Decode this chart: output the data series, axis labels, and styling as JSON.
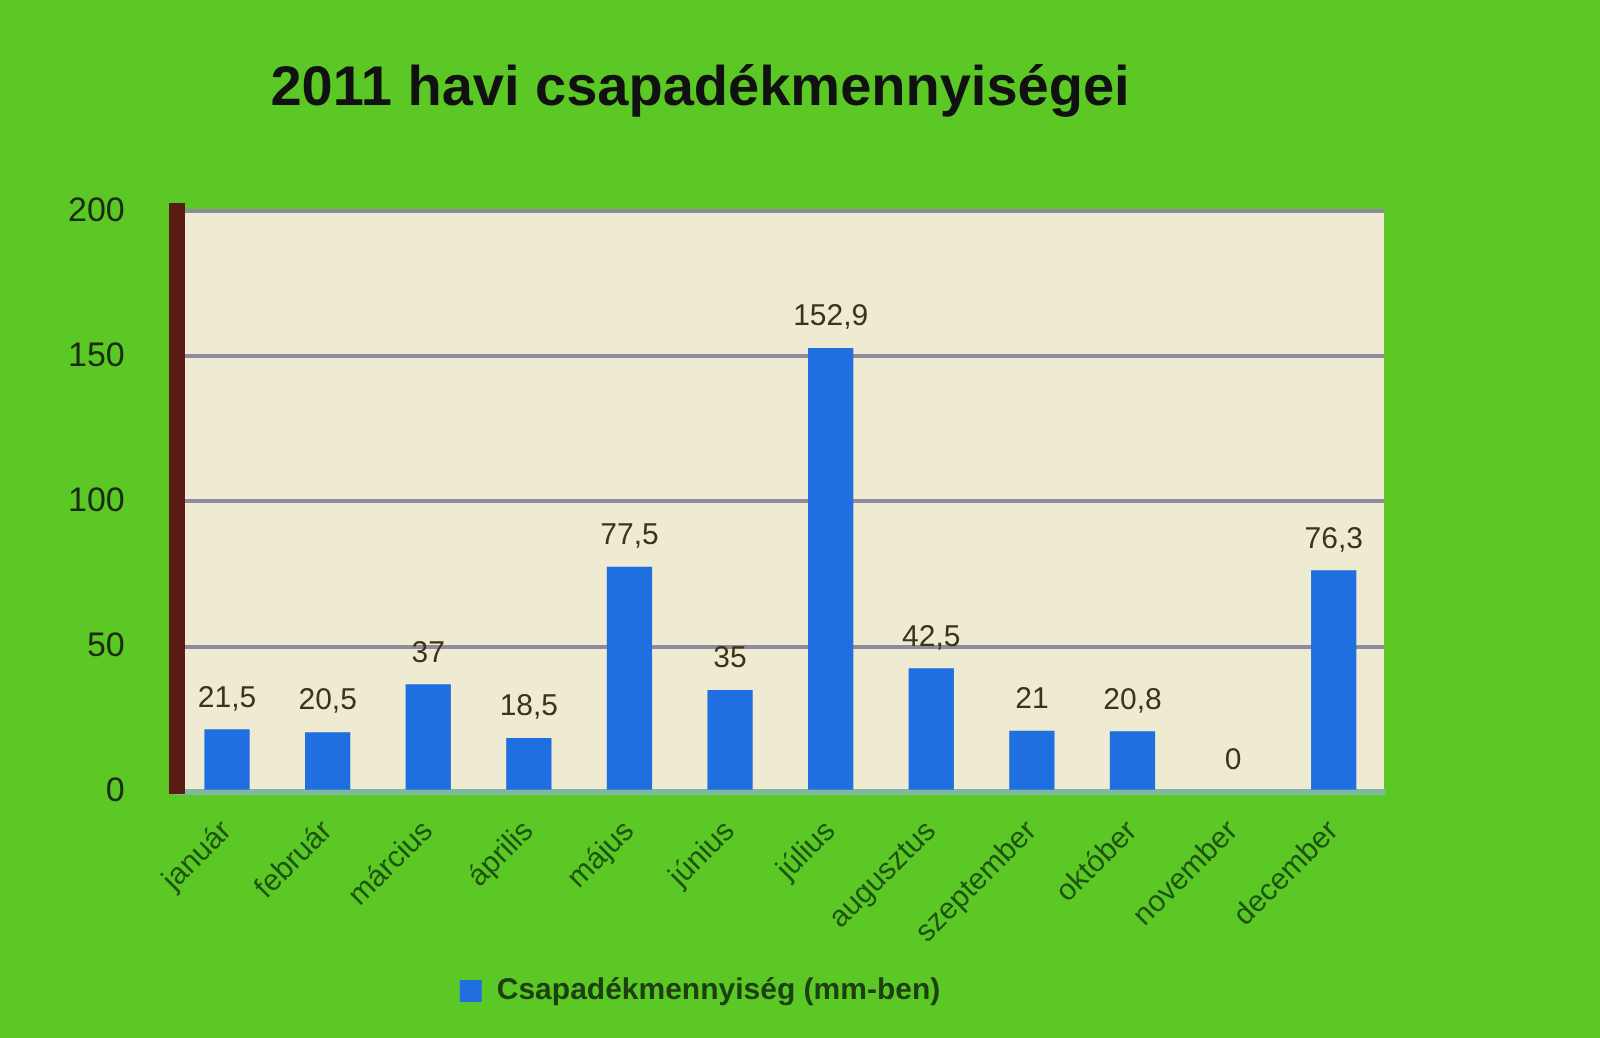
{
  "chart_data": {
    "type": "bar",
    "title": "2011 havi csapadékmennyiségei",
    "categories": [
      "január",
      "február",
      "március",
      "április",
      "május",
      "június",
      "július",
      "augusztus",
      "szeptember",
      "október",
      "november",
      "december"
    ],
    "series": [
      {
        "name": "Csapadékmennyiség (mm-ben)",
        "color": "#1f6fe0",
        "values": [
          21.5,
          20.5,
          37,
          18.5,
          77.5,
          35,
          152.9,
          42.5,
          21,
          20.8,
          0,
          76.3
        ],
        "value_labels": [
          "21,5",
          "20,5",
          "37",
          "18,5",
          "77,5",
          "35",
          "152,9",
          "42,5",
          "21",
          "20,8",
          "0",
          "76,3"
        ]
      }
    ],
    "ylim": [
      0,
      200
    ],
    "yticks": [
      0,
      50,
      100,
      150,
      200
    ],
    "grid": "y",
    "legend": "bottom"
  }
}
